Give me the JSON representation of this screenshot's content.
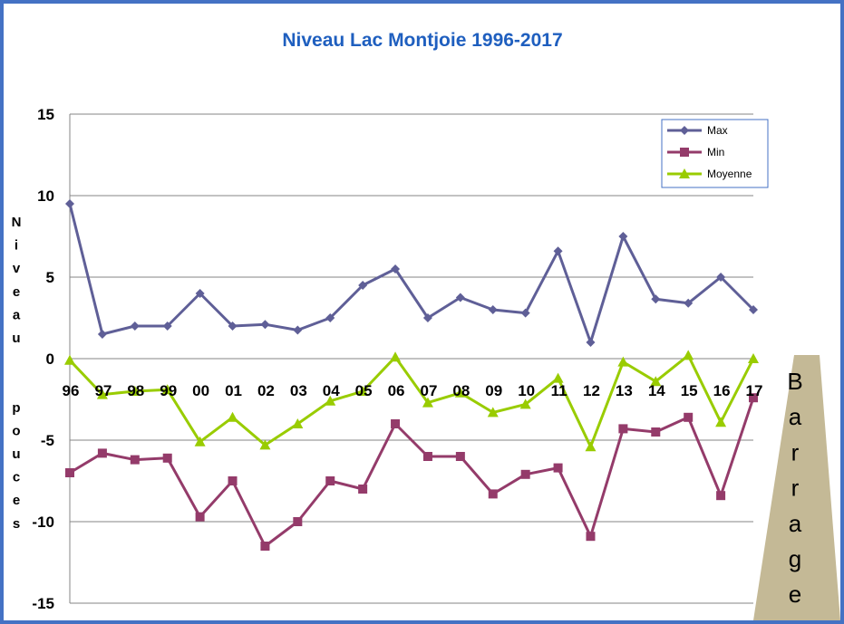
{
  "chart_data": {
    "type": "line",
    "title": "Niveau Lac Montjoie 1996-2017",
    "ylabel": "Niveau  pouces",
    "xlabel": "",
    "ylim": [
      -15,
      15
    ],
    "yticks": [
      15,
      10,
      5,
      0,
      -5,
      -10,
      -15
    ],
    "grid": true,
    "legend_position": "top-right",
    "categories": [
      "96",
      "97",
      "98",
      "99",
      "00",
      "01",
      "02",
      "03",
      "04",
      "05",
      "06",
      "07",
      "08",
      "09",
      "10",
      "11",
      "12",
      "13",
      "14",
      "15",
      "16",
      "17"
    ],
    "series": [
      {
        "name": "Max",
        "color": "#5f5f97",
        "marker": "diamond",
        "values": [
          9.5,
          1.5,
          2.0,
          2.0,
          4.0,
          2.0,
          2.1,
          1.75,
          2.5,
          4.5,
          5.5,
          2.5,
          3.75,
          3.0,
          2.8,
          6.6,
          1.0,
          7.5,
          3.65,
          3.4,
          5.0,
          3.0
        ]
      },
      {
        "name": "Min",
        "color": "#943b6a",
        "marker": "square",
        "values": [
          -7.0,
          -5.8,
          -6.2,
          -6.1,
          -9.7,
          -7.5,
          -11.5,
          -10.0,
          -7.5,
          -8.0,
          -4.0,
          -6.0,
          -6.0,
          -8.3,
          -7.1,
          -6.7,
          -10.9,
          -4.3,
          -4.5,
          -3.6,
          -8.4,
          -2.4
        ]
      },
      {
        "name": "Moyenne",
        "color": "#99cc00",
        "marker": "triangle",
        "values": [
          -0.1,
          -2.2,
          -2.0,
          -1.9,
          -5.1,
          -3.6,
          -5.3,
          -4.0,
          -2.6,
          -2.0,
          0.1,
          -2.7,
          -2.1,
          -3.3,
          -2.8,
          -1.2,
          -5.4,
          -0.2,
          -1.4,
          0.2,
          -3.9,
          0.0
        ]
      }
    ],
    "annotation": {
      "text": "Barrage",
      "color": "#c4b996"
    }
  }
}
